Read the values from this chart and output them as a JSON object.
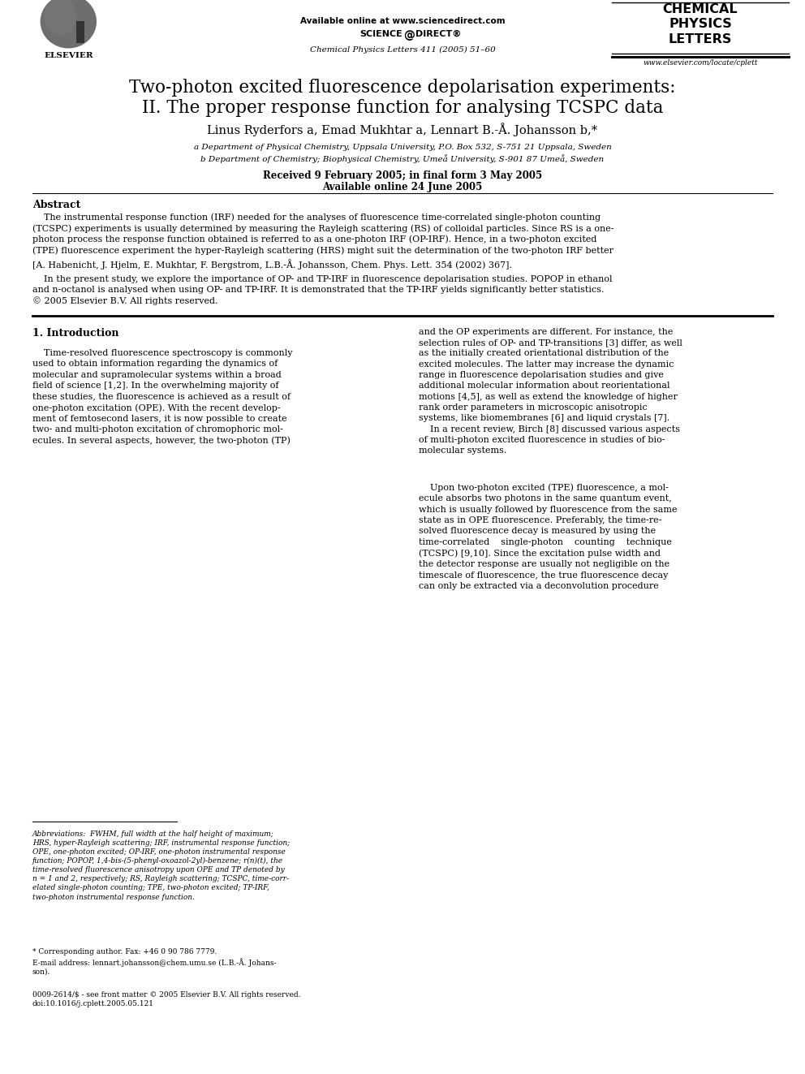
{
  "background_color": "#ffffff",
  "header": {
    "available_online_text": "Available online at www.sciencedirect.com",
    "sciencedirect_text": "SCIENCE  @  DIRECT",
    "journal_info": "Chemical Physics Letters 411 (2005) 51–60",
    "journal_name_line1": "CHEMICAL",
    "journal_name_line2": "PHYSICS",
    "journal_name_line3": "LETTERS",
    "journal_url": "www.elsevier.com/locate/cplett",
    "elsevier_label": "ELSEVIER"
  },
  "title_line1": "Two-photon excited fluorescence depolarisation experiments:",
  "title_line2": "II. The proper response function for analysing TCSPC data",
  "authors": "Linus Ryderfors a, Emad Mukhtar a, Lennart B.-Å. Johansson b,*",
  "affil_a": "a Department of Physical Chemistry, Uppsala University, P.O. Box 532, S-751 21 Uppsala, Sweden",
  "affil_b": "b Department of Chemistry; Biophysical Chemistry, Umeå University, S-901 87 Umeå, Sweden",
  "dates": "Received 9 February 2005; in final form 3 May 2005",
  "available_online": "Available online 24 June 2005",
  "abstract_title": "Abstract",
  "abstract_p1": "    The instrumental response function (IRF) needed for the analyses of fluorescence time-correlated single-photon counting\n(TCSPC) experiments is usually determined by measuring the Rayleigh scattering (RS) of colloidal particles. Since RS is a one-\nphoton process the response function obtained is referred to as a one-photon IRF (OP-IRF). Hence, in a two-photon excited\n(TPE) fluorescence experiment the hyper-Rayleigh scattering (HRS) might suit the determination of the two-photon IRF better\n[A. Habenicht, J. Hjelm, E. Mukhtar, F. Bergstrom, L.B.-Å. Johansson, Chem. Phys. Lett. 354 (2002) 367].",
  "abstract_p2": "    In the present study, we explore the importance of OP- and TP-IRF in fluorescence depolarisation studies. POPOP in ethanol\nand n-octanol is analysed when using OP- and TP-IRF. It is demonstrated that the TP-IRF yields significantly better statistics.\n© 2005 Elsevier B.V. All rights reserved.",
  "section1_title": "1. Introduction",
  "section1_col1": "    Time-resolved fluorescence spectroscopy is commonly\nused to obtain information regarding the dynamics of\nmolecular and supramolecular systems within a broad\nfield of science [1,2]. In the overwhelming majority of\nthese studies, the fluorescence is achieved as a result of\none-photon excitation (OPE). With the recent develop-\nment of femtosecond lasers, it is now possible to create\ntwo- and multi-photon excitation of chromophoric mol-\necules. In several aspects, however, the two-photon (TP)",
  "section1_col2": "and the OP experiments are different. For instance, the\nselection rules of OP- and TP-transitions [3] differ, as well\nas the initially created orientational distribution of the\nexcited molecules. The latter may increase the dynamic\nrange in fluorescence depolarisation studies and give\nadditional molecular information about reorientational\nmotions [4,5], as well as extend the knowledge of higher\nrank order parameters in microscopic anisotropic\nsystems, like biomembranes [6] and liquid crystals [7].\n    In a recent review, Birch [8] discussed various aspects\nof multi-photon excited fluorescence in studies of bio-\nmolecular systems.",
  "col2_extra": "    Upon two-photon excited (TPE) fluorescence, a mol-\necule absorbs two photons in the same quantum event,\nwhich is usually followed by fluorescence from the same\nstate as in OPE fluorescence. Preferably, the time-re-\nsolved fluorescence decay is measured by using the\ntime-correlated    single-photon    counting    technique\n(TCSPC) [9,10]. Since the excitation pulse width and\nthe detector response are usually not negligible on the\ntimescale of fluorescence, the true fluorescence decay\ncan only be extracted via a deconvolution procedure",
  "footnote_abbrev": "Abbreviations:  FWHM, full width at the half height of maximum;\nHRS, hyper-Rayleigh scattering; IRF, instrumental response function;\nOPE, one-photon excited; OP-IRF, one-photon instrumental response\nfunction; POPOP, 1,4-bis-(5-phenyl-oxoazol-2yl)-benzene; r(n)(t), the\ntime-resolved fluorescence anisotropy upon OPE and TP denoted by\nn = 1 and 2, respectively; RS, Rayleigh scattering; TCSPC, time-corr-\nelated single-photon counting; TPE, two-photon excited; TP-IRF,\ntwo-photon instrumental response function.",
  "footnote_corresponding": "* Corresponding author. Fax: +46 0 90 786 7779.",
  "footnote_email": "E-mail address: lennart.johansson@chem.umu.se (L.B.-Å. Johans-\nson).",
  "footnote_copyright": "0009-2614/$ - see front matter © 2005 Elsevier B.V. All rights reserved.\ndoi:10.1016/j.cplett.2005.05.121"
}
